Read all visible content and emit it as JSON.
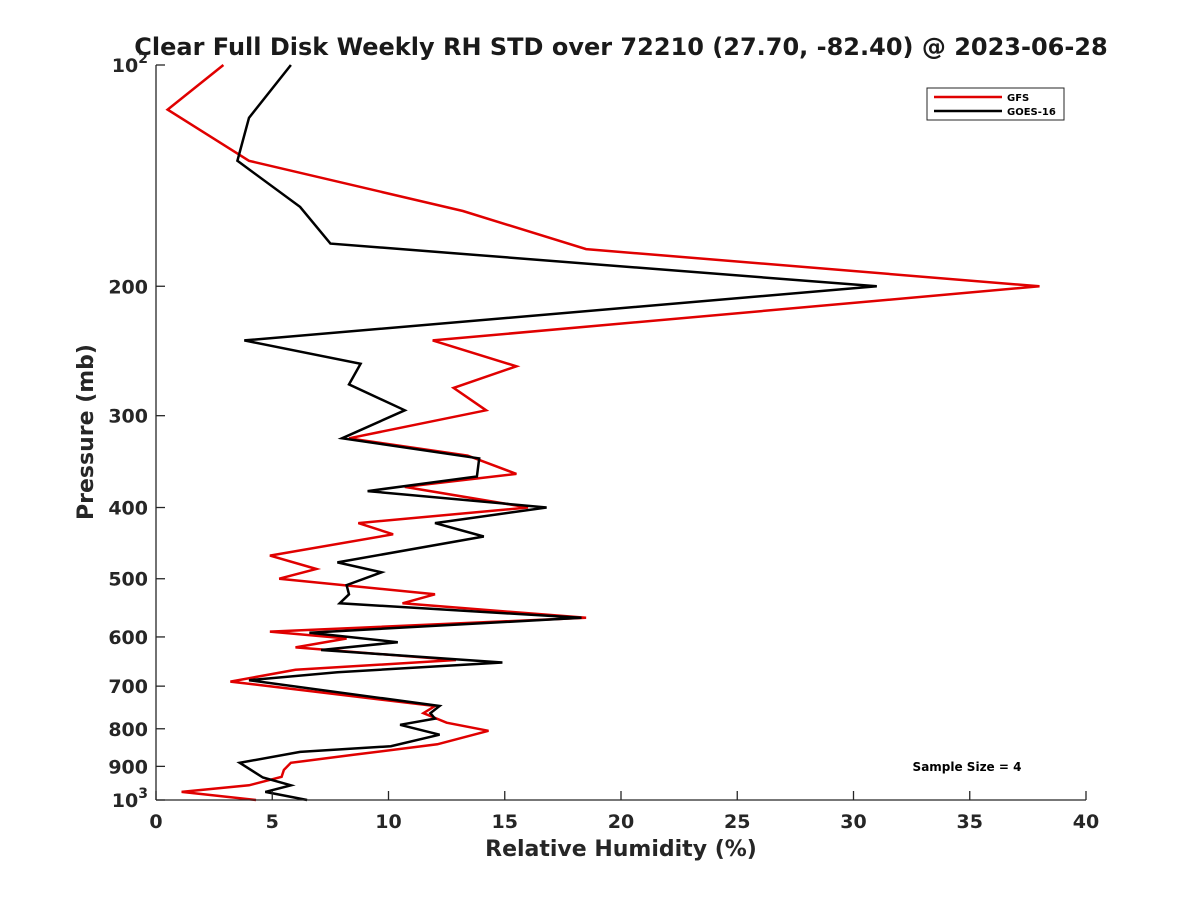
{
  "chart_data": {
    "type": "line",
    "title": "Clear Full Disk Weekly RH STD over 72210 (27.70, -82.40) @ 2023-06-28",
    "xlabel": "Relative Humidity (%)",
    "ylabel": "Pressure (mb)",
    "xlim": [
      0,
      40
    ],
    "ylim": [
      100,
      1000
    ],
    "yscale": "log",
    "y_reversed": true,
    "x_ticks": [
      "0",
      "5",
      "10",
      "15",
      "20",
      "25",
      "30",
      "35",
      "40"
    ],
    "y_ticks": [
      {
        "value": 100,
        "base": "10",
        "exp": "2"
      },
      {
        "value": 200,
        "label": "200"
      },
      {
        "value": 300,
        "label": "300"
      },
      {
        "value": 400,
        "label": "400"
      },
      {
        "value": 500,
        "label": "500"
      },
      {
        "value": 600,
        "label": "600"
      },
      {
        "value": 700,
        "label": "700"
      },
      {
        "value": 800,
        "label": "800"
      },
      {
        "value": 900,
        "label": "900"
      },
      {
        "value": 1000,
        "base": "10",
        "exp": "3"
      }
    ],
    "legend_position": "top-right",
    "grid": false,
    "annotation": "Sample Size = 4",
    "series": [
      {
        "name": "GFS",
        "color": "#e00000",
        "points": [
          [
            2.9,
            100
          ],
          [
            0.5,
            115
          ],
          [
            4.0,
            135
          ],
          [
            13.2,
            158
          ],
          [
            18.5,
            178
          ],
          [
            38.0,
            200
          ],
          [
            11.9,
            237
          ],
          [
            15.5,
            257
          ],
          [
            12.8,
            275
          ],
          [
            14.2,
            295
          ],
          [
            8.3,
            322
          ],
          [
            13.4,
            340
          ],
          [
            15.5,
            360
          ],
          [
            10.7,
            375
          ],
          [
            16.0,
            400
          ],
          [
            8.7,
            420
          ],
          [
            10.2,
            435
          ],
          [
            4.9,
            465
          ],
          [
            6.9,
            485
          ],
          [
            5.3,
            500
          ],
          [
            12.0,
            525
          ],
          [
            10.6,
            540
          ],
          [
            18.5,
            565
          ],
          [
            4.9,
            590
          ],
          [
            8.2,
            603
          ],
          [
            6.0,
            620
          ],
          [
            12.9,
            645
          ],
          [
            6.0,
            665
          ],
          [
            3.2,
            690
          ],
          [
            12.0,
            745
          ],
          [
            11.5,
            762
          ],
          [
            12.5,
            785
          ],
          [
            14.3,
            805
          ],
          [
            12.1,
            840
          ],
          [
            8.5,
            868
          ],
          [
            5.8,
            890
          ],
          [
            5.5,
            910
          ],
          [
            5.4,
            930
          ],
          [
            4.0,
            955
          ],
          [
            1.1,
            975
          ],
          [
            4.3,
            1000
          ]
        ]
      },
      {
        "name": "GOES-16",
        "color": "#000000",
        "points": [
          [
            5.8,
            100
          ],
          [
            4.0,
            118
          ],
          [
            3.5,
            135
          ],
          [
            6.2,
            156
          ],
          [
            7.5,
            175
          ],
          [
            31.0,
            200
          ],
          [
            3.8,
            237
          ],
          [
            8.8,
            255
          ],
          [
            8.3,
            272
          ],
          [
            10.7,
            295
          ],
          [
            8.0,
            322
          ],
          [
            13.9,
            343
          ],
          [
            13.8,
            363
          ],
          [
            9.1,
            380
          ],
          [
            16.8,
            400
          ],
          [
            12.0,
            420
          ],
          [
            14.1,
            438
          ],
          [
            7.8,
            475
          ],
          [
            9.7,
            490
          ],
          [
            8.2,
            510
          ],
          [
            8.3,
            525
          ],
          [
            7.9,
            540
          ],
          [
            18.3,
            565
          ],
          [
            6.6,
            592
          ],
          [
            10.4,
            610
          ],
          [
            7.1,
            625
          ],
          [
            14.9,
            650
          ],
          [
            7.8,
            670
          ],
          [
            4.0,
            687
          ],
          [
            12.2,
            745
          ],
          [
            11.8,
            762
          ],
          [
            12.0,
            775
          ],
          [
            10.5,
            790
          ],
          [
            12.2,
            815
          ],
          [
            10.1,
            845
          ],
          [
            6.2,
            860
          ],
          [
            3.6,
            890
          ],
          [
            4.6,
            932
          ],
          [
            5.8,
            955
          ],
          [
            4.7,
            975
          ],
          [
            6.5,
            1000
          ]
        ]
      }
    ]
  }
}
